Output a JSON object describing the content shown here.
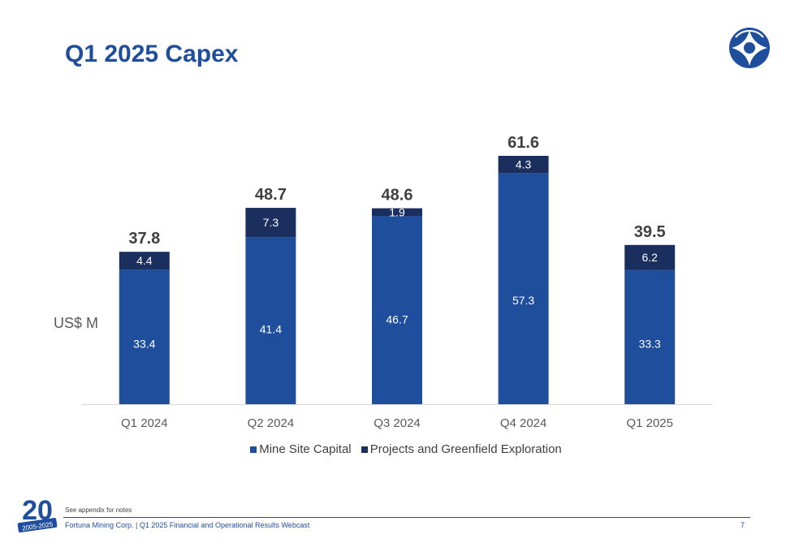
{
  "header": {
    "title": "Q1 2025 Capex"
  },
  "unit_label": "US$ M",
  "footer": {
    "note": "See appendix for notes",
    "text": "Fortuna Mining Corp. | Q1 2025 Financial and Operational Results Webcast",
    "page": "7",
    "badge_number": "20",
    "badge_years": "2005-2025"
  },
  "colors": {
    "mine": "#1f4e9c",
    "projects": "#1b2f5e",
    "title": "#1f4e9c"
  },
  "chart_data": {
    "type": "bar",
    "stacked": true,
    "categories": [
      "Q1 2024",
      "Q2 2024",
      "Q3 2024",
      "Q4 2024",
      "Q1 2025"
    ],
    "series": [
      {
        "name": "Mine Site Capital",
        "values": [
          33.4,
          41.4,
          46.7,
          57.3,
          33.3
        ],
        "labels": [
          "33.4",
          "41.4",
          "46.7",
          "57.3",
          "33.3"
        ],
        "color": "#1f4e9c"
      },
      {
        "name": "Projects and Greenfield Exploration",
        "values": [
          4.4,
          7.3,
          1.9,
          4.3,
          6.2
        ],
        "labels": [
          "4.4",
          "7.3",
          "1.9",
          "4.3",
          "6.2"
        ],
        "color": "#1b2f5e"
      }
    ],
    "totals": [
      37.8,
      48.7,
      48.6,
      61.6,
      39.5
    ],
    "total_labels": [
      "37.8",
      "48.7",
      "48.6",
      "61.6",
      "39.5"
    ],
    "ylabel": "US$ M",
    "ylim": [
      0,
      61.6
    ],
    "grid": false,
    "legend": "bottom"
  }
}
